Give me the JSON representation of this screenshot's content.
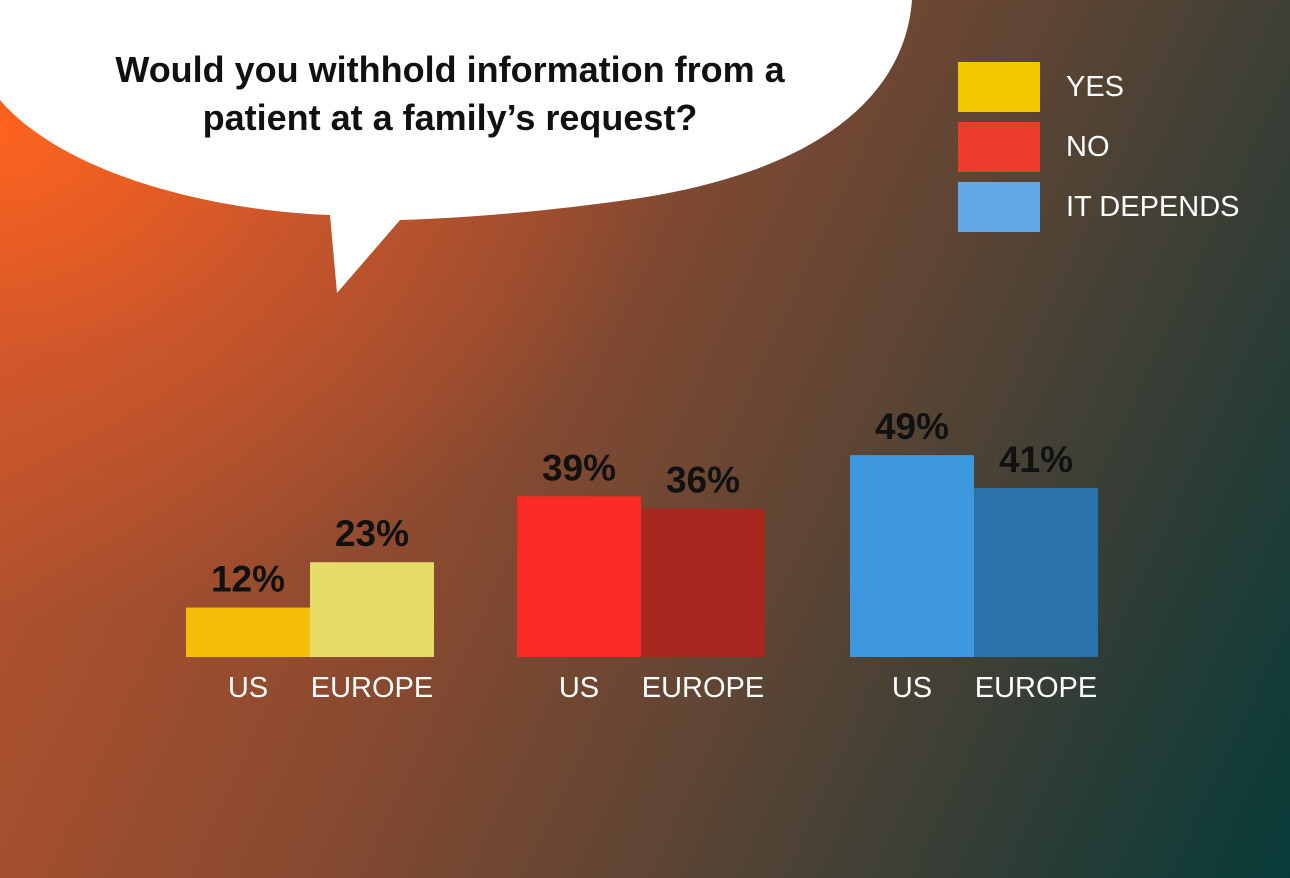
{
  "title_lines": [
    "Would you withhold information from a",
    "patient at a family’s request?"
  ],
  "legend": [
    {
      "label": "YES",
      "color": "#f2c800"
    },
    {
      "label": "NO",
      "color": "#ee3c2c"
    },
    {
      "label": "IT DEPENDS",
      "color": "#62aae6"
    }
  ],
  "chart_data": {
    "type": "bar",
    "title": "Would you withhold information from a patient at a family’s request?",
    "groups": [
      "YES",
      "NO",
      "IT DEPENDS"
    ],
    "categories": [
      "US",
      "EUROPE"
    ],
    "series": [
      {
        "name": "YES",
        "values": [
          12,
          23
        ],
        "labels": [
          "12%",
          "23%"
        ],
        "colors": [
          "#f5be0b",
          "#e6db68"
        ]
      },
      {
        "name": "NO",
        "values": [
          39,
          36
        ],
        "labels": [
          "39%",
          "36%"
        ],
        "colors": [
          "#fa2a25",
          "#a82820"
        ]
      },
      {
        "name": "IT DEPENDS",
        "values": [
          49,
          41
        ],
        "labels": [
          "49%",
          "41%"
        ],
        "colors": [
          "#3d98de",
          "#2a72aa"
        ]
      }
    ],
    "unit": "%",
    "grid": false,
    "legend_position": "top-right"
  }
}
